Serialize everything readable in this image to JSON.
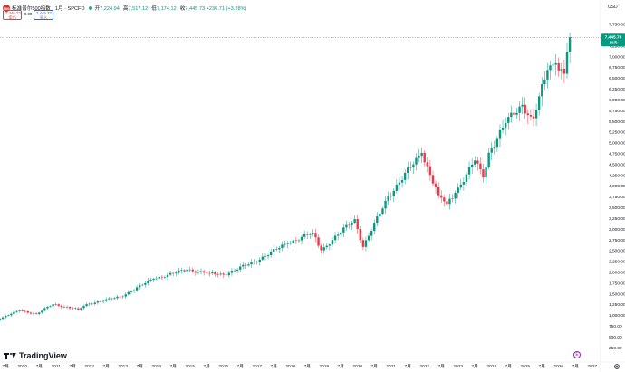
{
  "header": {
    "symbol_badge": "500",
    "title": "标准普尔500指数 · 1月 · SPCFD",
    "ohlc": [
      {
        "k": "开",
        "v": "7,224.94"
      },
      {
        "k": "高",
        "v": "7,517.12"
      },
      {
        "k": "低",
        "v": "7,174.12"
      },
      {
        "k": "收",
        "v": "7,445.73 +236.71 (+3.28%)"
      }
    ],
    "up_color": "#089981",
    "down_color": "#f23645"
  },
  "trade": {
    "sell_price": "7,445.73",
    "sell_label": "卖出",
    "spread": "0.00",
    "buy_price": "7,445.73",
    "buy_label": "买入"
  },
  "currency": "USD",
  "last_price_tag": {
    "price": "7,445.73",
    "countdown": "18天"
  },
  "brand": "TradingView",
  "event_marker": "E",
  "chart_data": {
    "type": "candlestick",
    "title": "标准普尔500指数 · 1月 · SPCFD",
    "interval": "1M",
    "ylim": [
      0,
      7850
    ],
    "y_ticks": [
      "250.00",
      "500.00",
      "750.00",
      "1,000.00",
      "1,250.00",
      "1,500.00",
      "1,750.00",
      "2,000.00",
      "2,250.00",
      "2,500.00",
      "2,750.00",
      "3,000.00",
      "3,250.00",
      "3,500.00",
      "3,750.00",
      "4,000.00",
      "4,250.00",
      "4,500.00",
      "4,750.00",
      "5,000.00",
      "5,250.00",
      "5,500.00",
      "5,750.00",
      "6,000.00",
      "6,250.00",
      "6,500.00",
      "6,750.00",
      "7,000.00",
      "7,250.00",
      "7,500.00",
      "7,750.00"
    ],
    "x_ticks": [
      "7月",
      "2010",
      "7月",
      "2011",
      "7月",
      "2012",
      "7月",
      "2013",
      "7月",
      "2014",
      "7月",
      "2015",
      "7月",
      "2016",
      "7月",
      "2017",
      "7月",
      "2018",
      "7月",
      "2019",
      "7月",
      "2020",
      "7月",
      "2021",
      "7月",
      "2022",
      "7月",
      "2023",
      "7月",
      "2024",
      "7月",
      "2025",
      "7月",
      "2026",
      "7月",
      "2027"
    ],
    "x_range": [
      "2009-05",
      "2027-04"
    ],
    "last_close": 7445.73,
    "up_color": "#089981",
    "down_color": "#f23645",
    "close_keypoints": [
      [
        "2009-05",
        919
      ],
      [
        "2009-12",
        1115
      ],
      [
        "2010-06",
        1030
      ],
      [
        "2010-12",
        1258
      ],
      [
        "2011-09",
        1131
      ],
      [
        "2011-12",
        1258
      ],
      [
        "2012-12",
        1426
      ],
      [
        "2013-12",
        1848
      ],
      [
        "2014-12",
        2059
      ],
      [
        "2015-08",
        1972
      ],
      [
        "2016-01",
        1940
      ],
      [
        "2016-12",
        2239
      ],
      [
        "2017-12",
        2674
      ],
      [
        "2018-09",
        2914
      ],
      [
        "2018-12",
        2507
      ],
      [
        "2019-12",
        3231
      ],
      [
        "2020-03",
        2585
      ],
      [
        "2020-12",
        3756
      ],
      [
        "2021-12",
        4766
      ],
      [
        "2022-06",
        3785
      ],
      [
        "2022-09",
        3586
      ],
      [
        "2022-12",
        3840
      ],
      [
        "2023-07",
        4589
      ],
      [
        "2023-10",
        4194
      ],
      [
        "2023-12",
        4770
      ],
      [
        "2024-06",
        5460
      ],
      [
        "2024-12",
        5882
      ],
      [
        "2025-03",
        5612
      ],
      [
        "2025-04",
        5569
      ],
      [
        "2025-09",
        6688
      ],
      [
        "2025-12",
        6845
      ],
      [
        "2026-03",
        6600
      ],
      [
        "2026-04",
        7100
      ],
      [
        "2026-05",
        7445.73
      ]
    ]
  }
}
